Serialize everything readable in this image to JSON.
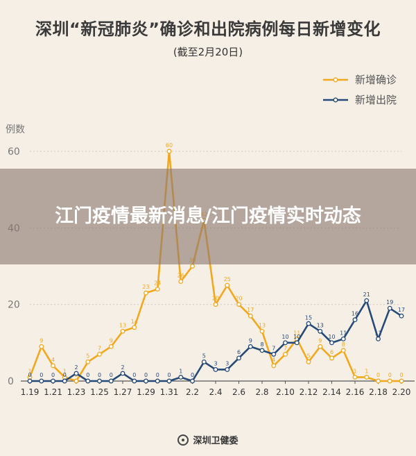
{
  "header": {
    "title": "深圳“新冠肺炎”确诊和出院病例每日新增变化",
    "subtitle": "(截至2月20日)"
  },
  "overlay": {
    "text": "江门疫情最新消息/江门疫情实时动态"
  },
  "footer": {
    "source": "深圳卫健委"
  },
  "colors": {
    "confirmed": "#f2a81c",
    "discharged": "#254a78",
    "axis": "#555555",
    "grid": "#cfc8bd"
  },
  "chart_data": {
    "type": "line",
    "ylabel": "例数",
    "ylim": [
      0,
      60
    ],
    "yticks": [
      0,
      20,
      40,
      60
    ],
    "x": [
      "1.19",
      "1.20",
      "1.21",
      "1.22",
      "1.23",
      "1.24",
      "1.25",
      "1.26",
      "1.27",
      "1.28",
      "1.29",
      "1.30",
      "1.31",
      "2.1",
      "2.2",
      "2.3",
      "2.4",
      "2.5",
      "2.6",
      "2.7",
      "2.8",
      "2.9",
      "2.10",
      "2.11",
      "2.12",
      "2.13",
      "2.14",
      "2.15",
      "2.16",
      "2.17",
      "2.18",
      "2.19",
      "2.20"
    ],
    "xtick_labels": [
      "1.19",
      "1.21",
      "1.23",
      "1.25",
      "1.27",
      "1.29",
      "1.31",
      "2.2",
      "2.4",
      "2.6",
      "2.8",
      "2.10",
      "2.12",
      "2.14",
      "2.16",
      "2.18",
      "2.20"
    ],
    "legend_position": "top-right",
    "series": [
      {
        "name": "新增确诊",
        "color": "#f2a81c",
        "values": [
          1,
          9,
          4,
          1,
          0,
          5,
          7,
          9,
          13,
          14,
          23,
          24,
          60,
          26,
          30,
          42,
          20,
          25,
          20,
          17,
          13,
          4,
          7,
          11,
          5,
          9,
          6,
          8,
          1,
          1,
          0,
          0,
          0
        ]
      },
      {
        "name": "新增出院",
        "color": "#254a78",
        "values": [
          0,
          0,
          0,
          0,
          2,
          0,
          0,
          0,
          2,
          0,
          0,
          0,
          0,
          1,
          0,
          5,
          3,
          3,
          6,
          9,
          8,
          7,
          10,
          10,
          15,
          13,
          10,
          11,
          16,
          21,
          11,
          19,
          17
        ]
      }
    ]
  }
}
